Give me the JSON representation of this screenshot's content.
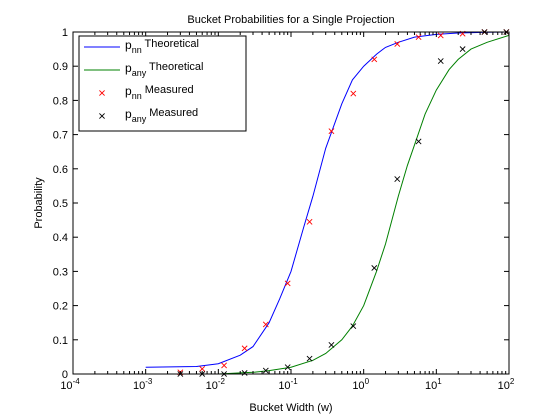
{
  "chart_data": {
    "type": "line",
    "title": "Bucket Probabilities for a Single Projection",
    "xlabel": "Bucket Width (w)",
    "ylabel": "Probability",
    "xscale": "log",
    "xlim": [
      0.0001,
      100
    ],
    "ylim": [
      0,
      1
    ],
    "x_tick_bases": [
      "10",
      "10",
      "10",
      "10",
      "10",
      "10",
      "10"
    ],
    "x_tick_exponents": [
      "-4",
      "-3",
      "-2",
      "-1",
      "0",
      "1",
      "2"
    ],
    "y_ticks": [
      "0",
      "0.1",
      "0.2",
      "0.3",
      "0.4",
      "0.5",
      "0.6",
      "0.7",
      "0.8",
      "0.9",
      "1"
    ],
    "grid": false,
    "legend_position": "top-left",
    "series": [
      {
        "name_base": "p",
        "name_sub": "nn",
        "name_rest": " Theoretical",
        "kind": "line",
        "color": "#0000ff",
        "x": [
          0.001,
          0.005,
          0.01,
          0.02,
          0.03,
          0.05,
          0.07,
          0.1,
          0.15,
          0.2,
          0.3,
          0.5,
          0.7,
          1,
          1.5,
          2,
          3,
          5,
          10,
          20,
          50,
          100
        ],
        "y": [
          0.02,
          0.022,
          0.03,
          0.055,
          0.08,
          0.15,
          0.22,
          0.3,
          0.43,
          0.52,
          0.66,
          0.79,
          0.86,
          0.9,
          0.935,
          0.955,
          0.97,
          0.985,
          0.993,
          0.997,
          0.999,
          1.0
        ]
      },
      {
        "name_base": "p",
        "name_sub": "any",
        "name_rest": " Theoretical",
        "kind": "line",
        "color": "#008000",
        "x": [
          0.01,
          0.03,
          0.05,
          0.1,
          0.2,
          0.3,
          0.5,
          0.7,
          1,
          1.5,
          2,
          3,
          4,
          5,
          7,
          10,
          15,
          20,
          30,
          50,
          100
        ],
        "y": [
          0.0,
          0.005,
          0.01,
          0.02,
          0.04,
          0.06,
          0.1,
          0.14,
          0.2,
          0.3,
          0.38,
          0.52,
          0.61,
          0.67,
          0.76,
          0.83,
          0.89,
          0.92,
          0.95,
          0.97,
          0.99
        ]
      },
      {
        "name_base": "p",
        "name_sub": "nn",
        "name_rest": " Measured",
        "kind": "scatter",
        "color": "#ff0000",
        "x": [
          0.003,
          0.006,
          0.012,
          0.023,
          0.045,
          0.09,
          0.18,
          0.36,
          0.72,
          1.4,
          2.9,
          5.7,
          11.5,
          23,
          46,
          92
        ],
        "y": [
          0.005,
          0.015,
          0.025,
          0.075,
          0.145,
          0.265,
          0.445,
          0.71,
          0.82,
          0.92,
          0.965,
          0.985,
          0.99,
          0.995,
          1.0,
          1.0
        ]
      },
      {
        "name_base": "p",
        "name_sub": "any",
        "name_rest": " Measured",
        "kind": "scatter",
        "color": "#000000",
        "x": [
          0.003,
          0.006,
          0.012,
          0.023,
          0.045,
          0.09,
          0.18,
          0.36,
          0.72,
          1.4,
          2.9,
          5.7,
          11.5,
          23,
          46,
          92
        ],
        "y": [
          0.0,
          0.0,
          0.0,
          0.003,
          0.01,
          0.02,
          0.045,
          0.085,
          0.14,
          0.31,
          0.57,
          0.68,
          0.915,
          0.95,
          1.0,
          1.0
        ]
      }
    ]
  }
}
